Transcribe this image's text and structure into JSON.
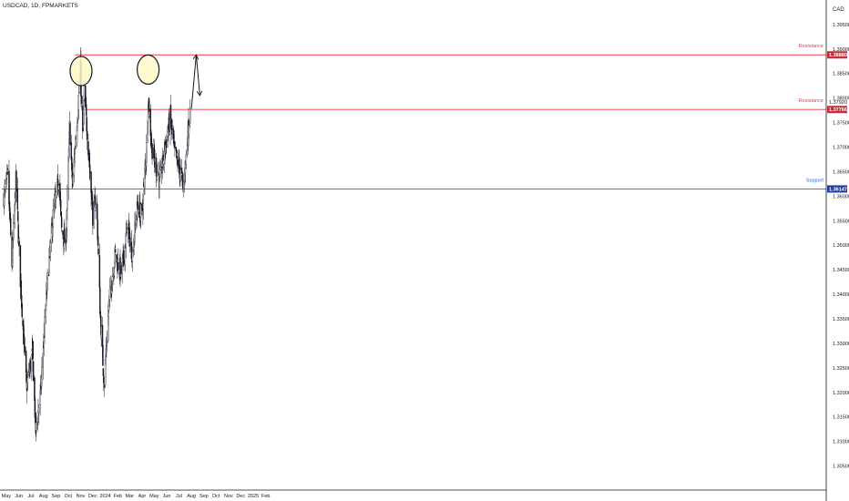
{
  "header": {
    "title": "USDCAD, 1D, FPMARKETS"
  },
  "currency_label": "CAD",
  "colors": {
    "candle": "#131722",
    "resistance": "#f23645",
    "resistance_badge": "#c2303b",
    "support": "#2962ff",
    "support_badge": "#1e3f9e",
    "axis": "#131722",
    "marker_fill": "#fff8c8"
  },
  "chart_data": {
    "type": "candlestick",
    "title": "USDCAD, 1D, FPMARKETS",
    "ylim": [
      1.3025,
      1.3985
    ],
    "y_ticks": [
      "1.39500",
      "1.39000",
      "1.38500",
      "1.38000",
      "1.37500",
      "1.37000",
      "1.36500",
      "1.36000",
      "1.35500",
      "1.35000",
      "1.34500",
      "1.34000",
      "1.33500",
      "1.33000",
      "1.32500",
      "1.32000",
      "1.31500",
      "1.31000",
      "1.30500"
    ],
    "x_ticks": [
      "May",
      "Jun",
      "Jul",
      "Aug",
      "Sep",
      "Oct",
      "Nov",
      "Dec",
      "2024",
      "Feb",
      "Mar",
      "Apr",
      "May",
      "Jun",
      "Jul",
      "Aug",
      "Sep",
      "Oct",
      "Nov",
      "Dec",
      "2025",
      "Feb"
    ],
    "levels": [
      {
        "name": "Resistance",
        "value": 1.3888,
        "badge": "1.38880",
        "kind": "resistance",
        "from_date": "2023-10-18"
      },
      {
        "name": "Resistance",
        "value": 1.37766,
        "badge": "1.37766",
        "kind": "resistance",
        "from_date": "2023-11-10"
      },
      {
        "name": "Support",
        "value": 1.36147,
        "badge": "1.36147",
        "kind": "support",
        "from_date": "2023-04-20"
      }
    ],
    "secondary_price_labels": [
      "1.37920"
    ],
    "price_path": [
      {
        "date": "2023-04-25",
        "close": 1.36
      },
      {
        "date": "2023-05-05",
        "close": 1.364
      },
      {
        "date": "2023-05-15",
        "close": 1.346
      },
      {
        "date": "2023-05-25",
        "close": 1.363
      },
      {
        "date": "2023-06-05",
        "close": 1.343
      },
      {
        "date": "2023-06-20",
        "close": 1.321
      },
      {
        "date": "2023-07-05",
        "close": 1.328
      },
      {
        "date": "2023-07-13",
        "close": 1.312
      },
      {
        "date": "2023-07-25",
        "close": 1.32
      },
      {
        "date": "2023-08-10",
        "close": 1.342
      },
      {
        "date": "2023-08-25",
        "close": 1.356
      },
      {
        "date": "2023-09-08",
        "close": 1.364
      },
      {
        "date": "2023-09-15",
        "close": 1.353
      },
      {
        "date": "2023-09-25",
        "close": 1.35
      },
      {
        "date": "2023-10-05",
        "close": 1.374
      },
      {
        "date": "2023-10-12",
        "close": 1.362
      },
      {
        "date": "2023-10-20",
        "close": 1.372
      },
      {
        "date": "2023-11-01",
        "close": 1.386
      },
      {
        "date": "2023-11-05",
        "close": 1.37
      },
      {
        "date": "2023-11-10",
        "close": 1.381
      },
      {
        "date": "2023-11-20",
        "close": 1.37
      },
      {
        "date": "2023-12-01",
        "close": 1.356
      },
      {
        "date": "2023-12-10",
        "close": 1.36
      },
      {
        "date": "2023-12-20",
        "close": 1.335
      },
      {
        "date": "2023-12-29",
        "close": 1.322
      },
      {
        "date": "2024-01-10",
        "close": 1.338
      },
      {
        "date": "2024-01-25",
        "close": 1.348
      },
      {
        "date": "2024-02-10",
        "close": 1.344
      },
      {
        "date": "2024-02-25",
        "close": 1.354
      },
      {
        "date": "2024-03-08",
        "close": 1.348
      },
      {
        "date": "2024-03-20",
        "close": 1.358
      },
      {
        "date": "2024-04-01",
        "close": 1.356
      },
      {
        "date": "2024-04-12",
        "close": 1.37
      },
      {
        "date": "2024-04-16",
        "close": 1.38
      },
      {
        "date": "2024-04-25",
        "close": 1.37
      },
      {
        "date": "2024-05-05",
        "close": 1.366
      },
      {
        "date": "2024-05-15",
        "close": 1.363
      },
      {
        "date": "2024-05-28",
        "close": 1.37
      },
      {
        "date": "2024-06-10",
        "close": 1.376
      },
      {
        "date": "2024-06-20",
        "close": 1.369
      },
      {
        "date": "2024-07-01",
        "close": 1.366
      },
      {
        "date": "2024-07-12",
        "close": 1.362
      },
      {
        "date": "2024-07-20",
        "close": 1.369
      },
      {
        "date": "2024-07-29",
        "close": 1.379
      }
    ],
    "annotations": [
      {
        "type": "circle",
        "date": "2023-11-02",
        "price": 1.3855
      },
      {
        "type": "circle",
        "date": "2024-04-16",
        "price": 1.3858
      },
      {
        "type": "arrow",
        "from_date": "2024-08-01",
        "from_price": 1.3778,
        "to_date": "2024-08-13",
        "to_price": 1.3888
      },
      {
        "type": "arrow",
        "from_date": "2024-08-13",
        "from_price": 1.3888,
        "to_date": "2024-08-22",
        "to_price": 1.3805
      }
    ]
  }
}
